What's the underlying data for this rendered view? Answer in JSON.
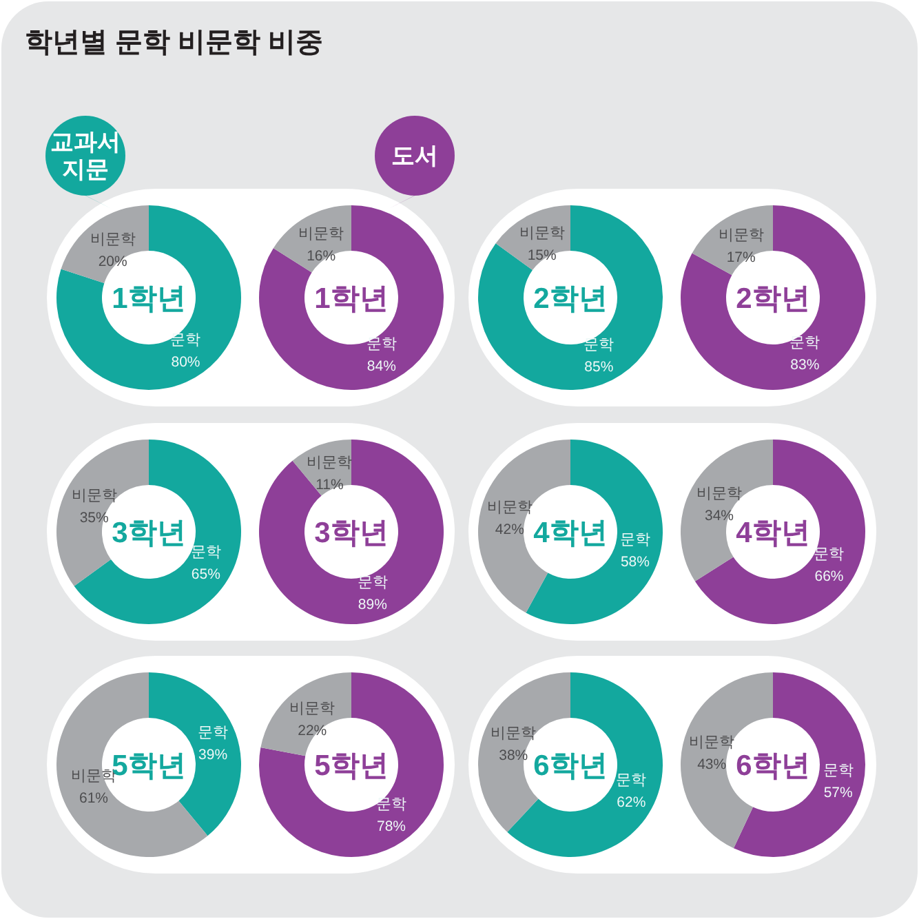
{
  "chart_data": [
    {
      "type": "other",
      "title": "학년별 문학 비문학 비중"
    },
    {
      "type": "donut",
      "title": "1학년",
      "categories": [
        "문학",
        "비문학"
      ],
      "values": [
        80,
        20
      ],
      "colors": [
        "#13a89e",
        "#a7a9ac"
      ],
      "value_labels": [
        "80%",
        "20%"
      ],
      "annotations": [
        "교과서 지문"
      ]
    },
    {
      "type": "donut",
      "title": "1학년",
      "categories": [
        "문학",
        "비문학"
      ],
      "values": [
        84,
        16
      ],
      "colors": [
        "#8e3f98",
        "#a7a9ac"
      ],
      "value_labels": [
        "84%",
        "16%"
      ],
      "annotations": [
        "도서"
      ]
    },
    {
      "type": "donut",
      "title": "2학년",
      "categories": [
        "문학",
        "비문학"
      ],
      "values": [
        85,
        15
      ],
      "colors": [
        "#13a89e",
        "#a7a9ac"
      ],
      "value_labels": [
        "85%",
        "15%"
      ]
    },
    {
      "type": "donut",
      "title": "2학년",
      "categories": [
        "문학",
        "비문학"
      ],
      "values": [
        83,
        17
      ],
      "colors": [
        "#8e3f98",
        "#a7a9ac"
      ],
      "value_labels": [
        "83%",
        "17%"
      ]
    },
    {
      "type": "donut",
      "title": "3학년",
      "categories": [
        "문학",
        "비문학"
      ],
      "values": [
        65,
        35
      ],
      "colors": [
        "#13a89e",
        "#a7a9ac"
      ],
      "value_labels": [
        "65%",
        "35%"
      ]
    },
    {
      "type": "donut",
      "title": "3학년",
      "categories": [
        "문학",
        "비문학"
      ],
      "values": [
        89,
        11
      ],
      "colors": [
        "#8e3f98",
        "#a7a9ac"
      ],
      "value_labels": [
        "89%",
        "11%"
      ]
    },
    {
      "type": "donut",
      "title": "4학년",
      "categories": [
        "문학",
        "비문학"
      ],
      "values": [
        58,
        42
      ],
      "colors": [
        "#13a89e",
        "#a7a9ac"
      ],
      "value_labels": [
        "58%",
        "42%"
      ]
    },
    {
      "type": "donut",
      "title": "4학년",
      "categories": [
        "문학",
        "비문학"
      ],
      "values": [
        66,
        34
      ],
      "colors": [
        "#8e3f98",
        "#a7a9ac"
      ],
      "value_labels": [
        "66%",
        "34%"
      ]
    },
    {
      "type": "donut",
      "title": "5학년",
      "categories": [
        "문학",
        "비문학"
      ],
      "values": [
        39,
        61
      ],
      "colors": [
        "#13a89e",
        "#a7a9ac"
      ],
      "value_labels": [
        "39%",
        "61%"
      ]
    },
    {
      "type": "donut",
      "title": "5학년",
      "categories": [
        "문학",
        "비문학"
      ],
      "values": [
        78,
        22
      ],
      "colors": [
        "#8e3f98",
        "#a7a9ac"
      ],
      "value_labels": [
        "78%",
        "22%"
      ]
    },
    {
      "type": "donut",
      "title": "6학년",
      "categories": [
        "문학",
        "비문학"
      ],
      "values": [
        62,
        38
      ],
      "colors": [
        "#13a89e",
        "#a7a9ac"
      ],
      "value_labels": [
        "62%",
        "38%"
      ]
    },
    {
      "type": "donut",
      "title": "6학년",
      "categories": [
        "문학",
        "비문학"
      ],
      "values": [
        57,
        43
      ],
      "colors": [
        "#8e3f98",
        "#a7a9ac"
      ],
      "value_labels": [
        "57%",
        "43%"
      ]
    }
  ]
}
